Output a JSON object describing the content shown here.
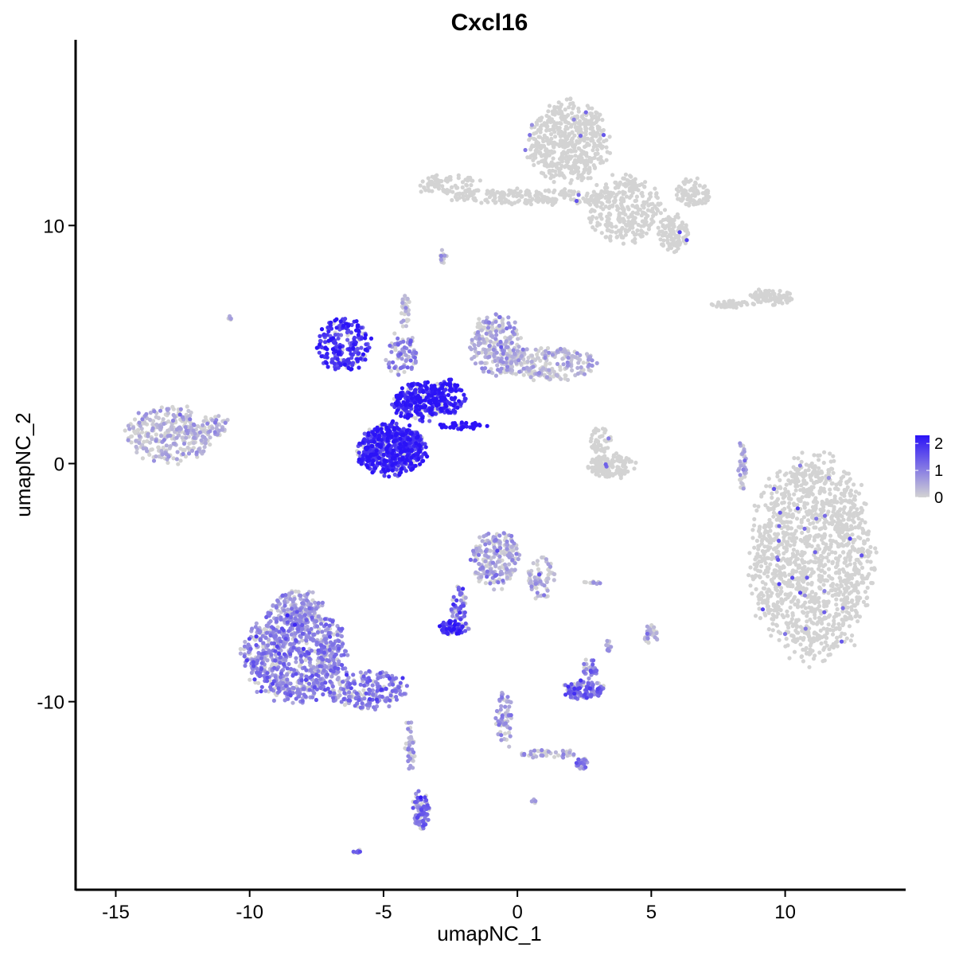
{
  "chart_data": {
    "type": "scatter",
    "title": "Cxcl16",
    "xlabel": "umapNC_1",
    "ylabel": "umapNC_2",
    "xlim": [
      -16.5,
      14.5
    ],
    "ylim": [
      -17.9,
      17.8
    ],
    "x_ticks": [
      -15,
      -10,
      -5,
      0,
      5,
      10
    ],
    "y_ticks": [
      -10,
      0,
      10
    ],
    "grid": false,
    "legend": {
      "position": "right",
      "min": 0,
      "max": 2.3,
      "ticks": [
        0,
        1,
        2
      ]
    },
    "colors": {
      "low": "#d3d3d3",
      "high": "#2b13f7"
    },
    "clusters": [
      {
        "cx": 11.0,
        "cy": -4.0,
        "rx": 2.3,
        "ry": 4.3,
        "n": 1400,
        "expr": 0.02,
        "note": "large grey right"
      },
      {
        "cx": 1.9,
        "cy": 13.5,
        "rx": 1.5,
        "ry": 1.7,
        "n": 500,
        "expr": 0.02
      },
      {
        "cx": 4.0,
        "cy": 10.7,
        "rx": 1.4,
        "ry": 1.4,
        "n": 300,
        "expr": 0.05
      },
      {
        "cx": 5.8,
        "cy": 9.7,
        "rx": 0.6,
        "ry": 0.8,
        "n": 110,
        "expr": 0.03
      },
      {
        "cx": 0.5,
        "cy": 11.2,
        "rx": 3.0,
        "ry": 0.35,
        "n": 200,
        "expr": 0.03
      },
      {
        "cx": -2.5,
        "cy": 11.7,
        "rx": 1.2,
        "ry": 0.5,
        "n": 90,
        "expr": 0.05
      },
      {
        "cx": 6.5,
        "cy": 11.4,
        "rx": 0.7,
        "ry": 0.6,
        "n": 80,
        "expr": 0.03
      },
      {
        "cx": 9.5,
        "cy": 7.0,
        "rx": 0.8,
        "ry": 0.35,
        "n": 80,
        "expr": 0.02
      },
      {
        "cx": 8.0,
        "cy": 6.7,
        "rx": 0.8,
        "ry": 0.15,
        "n": 40,
        "expr": 0.02
      },
      {
        "cx": -13.0,
        "cy": 1.2,
        "rx": 1.6,
        "ry": 1.2,
        "n": 320,
        "expr": 0.25
      },
      {
        "cx": -11.2,
        "cy": 1.6,
        "rx": 0.5,
        "ry": 0.5,
        "n": 40,
        "expr": 0.3
      },
      {
        "cx": -6.5,
        "cy": 5.0,
        "rx": 1.0,
        "ry": 1.1,
        "n": 220,
        "expr": 1.9
      },
      {
        "cx": -4.7,
        "cy": 0.6,
        "rx": 1.3,
        "ry": 1.1,
        "n": 650,
        "expr": 2.0
      },
      {
        "cx": -3.6,
        "cy": 2.6,
        "rx": 1.1,
        "ry": 0.8,
        "n": 260,
        "expr": 2.1
      },
      {
        "cx": -2.6,
        "cy": 2.8,
        "rx": 0.7,
        "ry": 0.7,
        "n": 120,
        "expr": 2.2
      },
      {
        "cx": -2.1,
        "cy": 1.6,
        "rx": 0.9,
        "ry": 0.15,
        "n": 40,
        "expr": 2.3
      },
      {
        "cx": -4.3,
        "cy": 4.6,
        "rx": 0.6,
        "ry": 0.9,
        "n": 80,
        "expr": 0.9
      },
      {
        "cx": -4.2,
        "cy": 6.4,
        "rx": 0.2,
        "ry": 0.7,
        "n": 30,
        "expr": 0.1
      },
      {
        "cx": -0.8,
        "cy": 5.0,
        "rx": 1.0,
        "ry": 1.3,
        "n": 220,
        "expr": 0.45
      },
      {
        "cx": 1.2,
        "cy": 4.2,
        "rx": 1.8,
        "ry": 0.7,
        "n": 220,
        "expr": 0.25
      },
      {
        "cx": 3.5,
        "cy": -0.1,
        "rx": 0.9,
        "ry": 0.5,
        "n": 140,
        "expr": 0.08
      },
      {
        "cx": 3.1,
        "cy": 1.0,
        "rx": 0.4,
        "ry": 0.6,
        "n": 50,
        "expr": 0.08
      },
      {
        "cx": 8.4,
        "cy": -0.1,
        "rx": 0.15,
        "ry": 1.1,
        "n": 40,
        "expr": 0.4
      },
      {
        "cx": -0.8,
        "cy": -4.0,
        "rx": 0.9,
        "ry": 1.2,
        "n": 220,
        "expr": 0.55
      },
      {
        "cx": 0.9,
        "cy": -4.8,
        "rx": 0.5,
        "ry": 0.9,
        "n": 70,
        "expr": 0.35
      },
      {
        "cx": -2.2,
        "cy": -6.0,
        "rx": 0.3,
        "ry": 0.9,
        "n": 50,
        "expr": 1.2
      },
      {
        "cx": -2.4,
        "cy": -6.9,
        "rx": 0.6,
        "ry": 0.3,
        "n": 80,
        "expr": 1.8
      },
      {
        "cx": -8.3,
        "cy": -8.0,
        "rx": 1.9,
        "ry": 2.0,
        "n": 850,
        "expr": 0.9
      },
      {
        "cx": -5.6,
        "cy": -9.5,
        "rx": 1.5,
        "ry": 0.8,
        "n": 220,
        "expr": 1.0
      },
      {
        "cx": -8.2,
        "cy": -6.0,
        "rx": 0.9,
        "ry": 0.7,
        "n": 120,
        "expr": 0.5
      },
      {
        "cx": -4.0,
        "cy": -11.8,
        "rx": 0.2,
        "ry": 1.2,
        "n": 40,
        "expr": 0.5
      },
      {
        "cx": -3.6,
        "cy": -14.5,
        "rx": 0.3,
        "ry": 0.9,
        "n": 90,
        "expr": 1.1
      },
      {
        "cx": 2.5,
        "cy": -9.5,
        "rx": 0.8,
        "ry": 0.4,
        "n": 120,
        "expr": 1.2
      },
      {
        "cx": 2.7,
        "cy": -8.6,
        "rx": 0.3,
        "ry": 0.4,
        "n": 30,
        "expr": 1.0
      },
      {
        "cx": -0.5,
        "cy": -10.8,
        "rx": 0.3,
        "ry": 1.3,
        "n": 60,
        "expr": 0.6
      },
      {
        "cx": 1.2,
        "cy": -12.2,
        "rx": 1.1,
        "ry": 0.2,
        "n": 40,
        "expr": 0.4
      },
      {
        "cx": 2.4,
        "cy": -12.6,
        "rx": 0.25,
        "ry": 0.25,
        "n": 25,
        "expr": 0.9
      },
      {
        "cx": 5.0,
        "cy": -7.2,
        "rx": 0.25,
        "ry": 0.4,
        "n": 30,
        "expr": 0.3
      },
      {
        "cx": 3.4,
        "cy": -7.6,
        "rx": 0.1,
        "ry": 0.3,
        "n": 12,
        "expr": 0.3
      },
      {
        "cx": 2.8,
        "cy": -5.0,
        "rx": 0.3,
        "ry": 0.08,
        "n": 10,
        "expr": 0.5
      },
      {
        "cx": -2.8,
        "cy": 8.7,
        "rx": 0.2,
        "ry": 0.3,
        "n": 14,
        "expr": 0.1
      },
      {
        "cx": -6.0,
        "cy": -16.3,
        "rx": 0.15,
        "ry": 0.1,
        "n": 8,
        "expr": 1.0
      },
      {
        "cx": 0.6,
        "cy": -14.2,
        "rx": 0.1,
        "ry": 0.1,
        "n": 6,
        "expr": 0.5
      },
      {
        "cx": -10.7,
        "cy": 6.1,
        "rx": 0.1,
        "ry": 0.1,
        "n": 5,
        "expr": 0.6
      }
    ]
  }
}
